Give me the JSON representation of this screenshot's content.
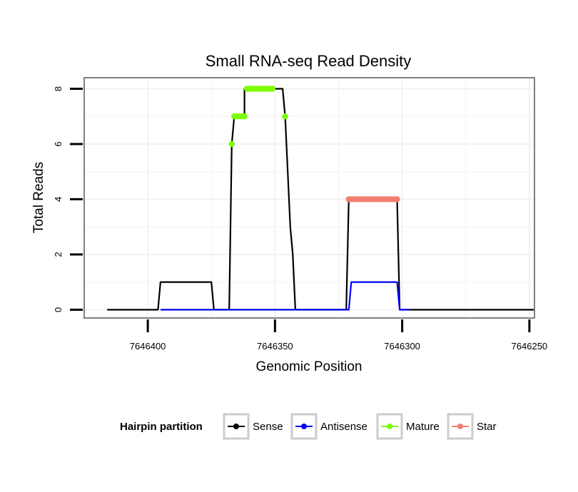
{
  "chart_data": {
    "type": "line",
    "title": "Small RNA-seq Read Density",
    "xlabel": "Genomic Position",
    "ylabel": "Total Reads",
    "xlim": [
      7646425,
      7646248
    ],
    "ylim": [
      -0.3,
      8.4
    ],
    "x_reversed": true,
    "x_ticks": [
      7646400,
      7646350,
      7646300,
      7646250
    ],
    "x_tick_labels": [
      "7646400",
      "7646350",
      "7646300",
      "7646250"
    ],
    "y_ticks": [
      0,
      2,
      4,
      6,
      8
    ],
    "y_tick_labels": [
      "0",
      "2",
      "4",
      "6",
      "8"
    ],
    "grid": true,
    "legend": {
      "title": "Hairpin partition",
      "position": "bottom",
      "entries": [
        {
          "name": "Sense",
          "color": "#000000"
        },
        {
          "name": "Antisense",
          "color": "#0000ff"
        },
        {
          "name": "Mature",
          "color": "#7cfc00"
        },
        {
          "name": "Star",
          "color": "#f08070"
        }
      ]
    },
    "series": [
      {
        "name": "Sense",
        "color": "#000000",
        "kind": "line",
        "x": [
          7646416,
          7646396,
          7646395,
          7646375,
          7646374,
          7646368,
          7646367,
          7646366,
          7646362,
          7646362,
          7646352,
          7646347,
          7646346,
          7646345,
          7646344,
          7646343,
          7646342,
          7646341,
          7646322,
          7646321,
          7646319,
          7646302,
          7646301,
          7646248
        ],
        "y": [
          0,
          0,
          1,
          1,
          0,
          0,
          6,
          7,
          7,
          8,
          8,
          8,
          7,
          5,
          3,
          2,
          0,
          0,
          0,
          4,
          4,
          4,
          0,
          0
        ]
      },
      {
        "name": "Antisense",
        "color": "#0000ff",
        "kind": "line",
        "x": [
          7646395,
          7646322,
          7646321,
          7646320,
          7646302,
          7646301,
          7646297
        ],
        "y": [
          0,
          0,
          0,
          1,
          1,
          0,
          0
        ]
      },
      {
        "name": "Mature",
        "color": "#7cfc00",
        "kind": "points",
        "x": [
          7646367,
          7646366,
          7646365,
          7646364,
          7646363,
          7646362,
          7646361,
          7646360,
          7646359,
          7646358,
          7646357,
          7646356,
          7646355,
          7646354,
          7646353,
          7646352,
          7646351,
          7646346
        ],
        "y": [
          6,
          7,
          7,
          7,
          7,
          7,
          8,
          8,
          8,
          8,
          8,
          8,
          8,
          8,
          8,
          8,
          8,
          7
        ]
      },
      {
        "name": "Star",
        "color": "#f08070",
        "kind": "points",
        "x": [
          7646321,
          7646320,
          7646319,
          7646318,
          7646317,
          7646316,
          7646315,
          7646314,
          7646313,
          7646312,
          7646311,
          7646310,
          7646309,
          7646308,
          7646307,
          7646306,
          7646305,
          7646304,
          7646303,
          7646302
        ],
        "y": [
          4,
          4,
          4,
          4,
          4,
          4,
          4,
          4,
          4,
          4,
          4,
          4,
          4,
          4,
          4,
          4,
          4,
          4,
          4,
          4
        ]
      }
    ]
  }
}
